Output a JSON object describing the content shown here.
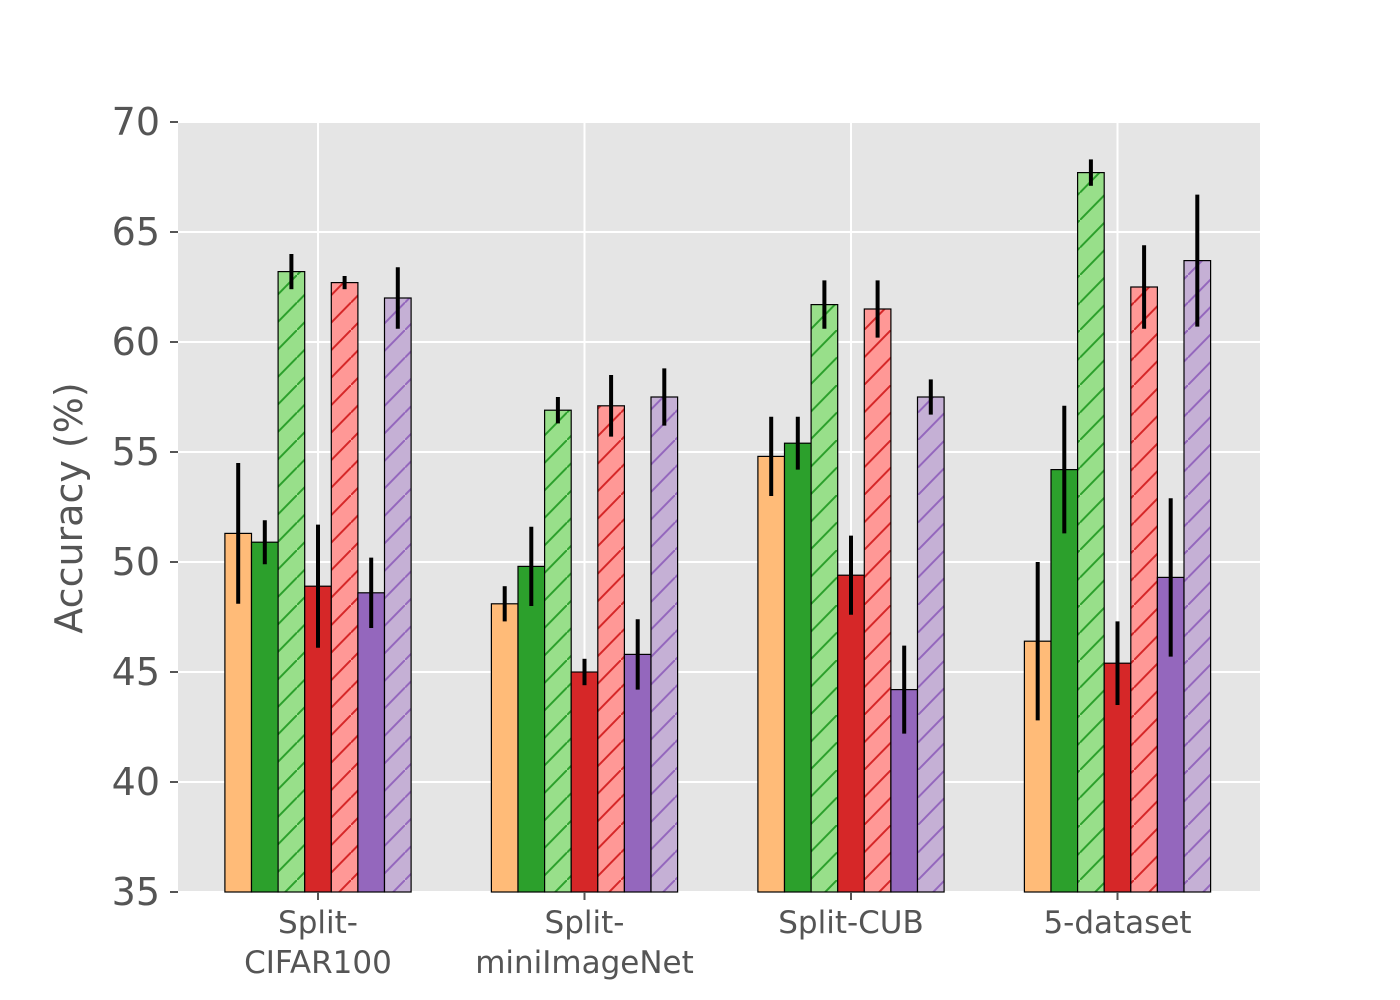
{
  "chart_data": {
    "type": "bar",
    "title": "",
    "xlabel": "",
    "ylabel": "Accuracy (%)",
    "ylim": [
      35,
      70
    ],
    "yticks": [
      "35",
      "40",
      "45",
      "50",
      "55",
      "60",
      "65",
      "70"
    ],
    "grid": true,
    "legend": "none",
    "background": "#e5e5e5",
    "categories": [
      [
        "Split-",
        "CIFAR100"
      ],
      [
        "Split-",
        "miniImageNet"
      ],
      [
        "Split-CUB"
      ],
      [
        "5-dataset"
      ]
    ],
    "series": [
      {
        "color": "#ffbb78",
        "hatch": false,
        "hatch_color": "",
        "values": [
          51.3,
          48.1,
          54.8,
          46.4
        ],
        "errors": [
          3.2,
          0.8,
          1.8,
          3.6
        ]
      },
      {
        "color": "#2ca02c",
        "hatch": false,
        "hatch_color": "",
        "values": [
          50.9,
          49.8,
          55.4,
          54.2
        ],
        "errors": [
          1.0,
          1.8,
          1.2,
          2.9
        ]
      },
      {
        "color": "#98df8a",
        "hatch": true,
        "hatch_color": "#2ca02c",
        "values": [
          63.2,
          56.9,
          61.7,
          67.7
        ],
        "errors": [
          0.8,
          0.6,
          1.1,
          0.6
        ]
      },
      {
        "color": "#d62728",
        "hatch": false,
        "hatch_color": "",
        "values": [
          48.9,
          45.0,
          49.4,
          45.4
        ],
        "errors": [
          2.8,
          0.6,
          1.8,
          1.9
        ]
      },
      {
        "color": "#ff9896",
        "hatch": true,
        "hatch_color": "#d62728",
        "values": [
          62.7,
          57.1,
          61.5,
          62.5
        ],
        "errors": [
          0.3,
          1.4,
          1.3,
          1.9
        ]
      },
      {
        "color": "#9467bd",
        "hatch": false,
        "hatch_color": "",
        "values": [
          48.6,
          45.8,
          44.2,
          49.3
        ],
        "errors": [
          1.6,
          1.6,
          2.0,
          3.6
        ]
      },
      {
        "color": "#c5b0d5",
        "hatch": true,
        "hatch_color": "#9467bd",
        "values": [
          62.0,
          57.5,
          57.5,
          63.7
        ],
        "errors": [
          1.4,
          1.3,
          0.8,
          3.0
        ]
      }
    ]
  }
}
